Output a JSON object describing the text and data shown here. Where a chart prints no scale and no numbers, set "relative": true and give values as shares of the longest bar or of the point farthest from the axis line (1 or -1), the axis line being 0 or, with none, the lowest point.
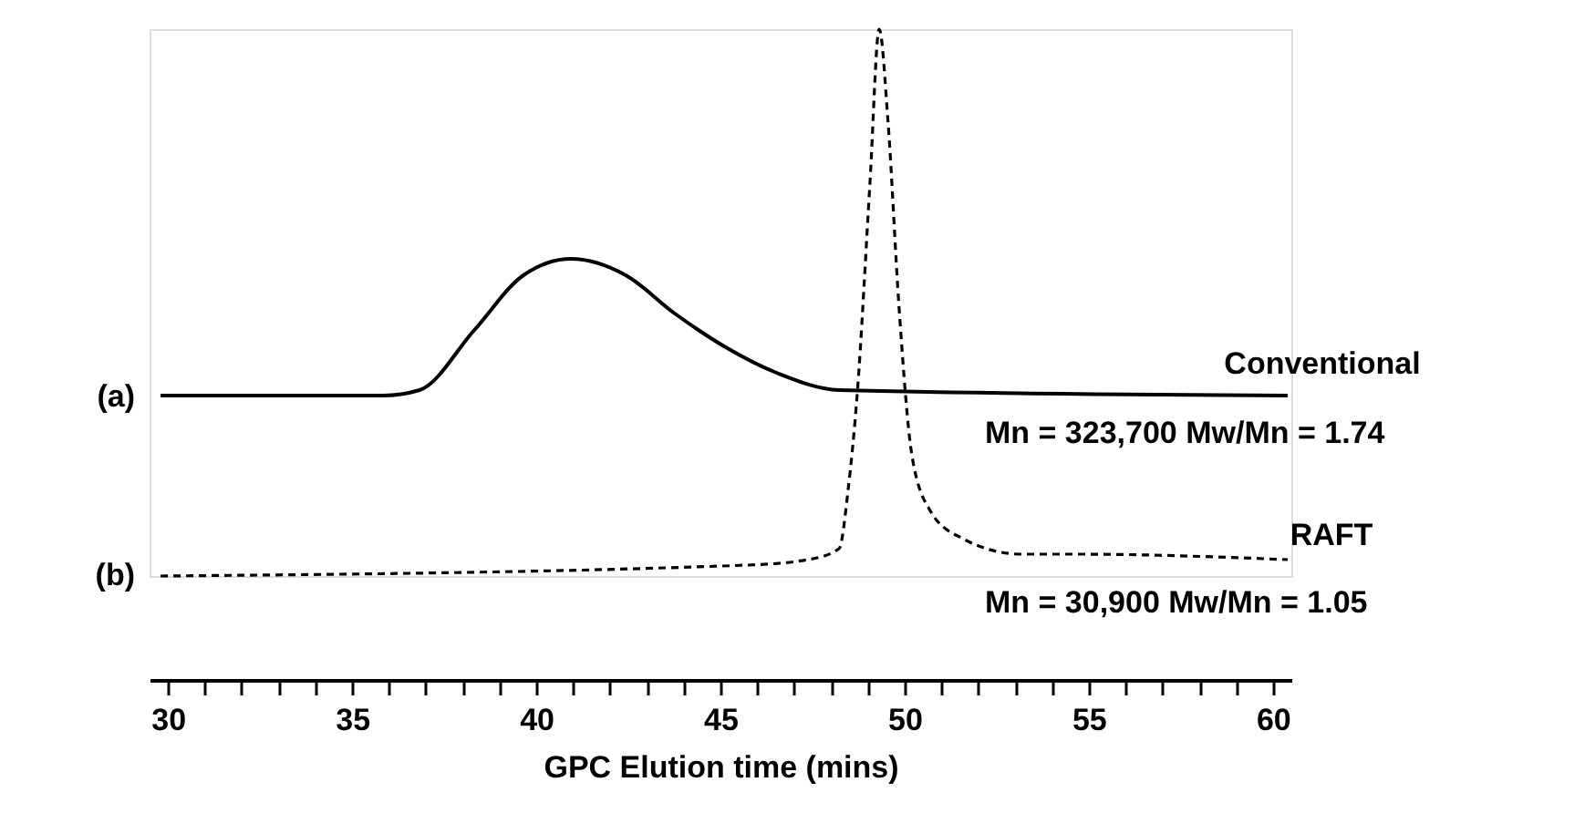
{
  "chart_data": {
    "type": "line",
    "relative": true,
    "xlabel": "GPC Elution time (mins)",
    "xlim": [
      29.5,
      60.5
    ],
    "xticks": [
      30,
      35,
      40,
      45,
      50,
      55,
      60
    ],
    "tick_labels": "x",
    "grid": false,
    "legend": false,
    "marker": "none",
    "series": [
      {
        "color": "#000000",
        "line_style": "solid",
        "x": [
          29.8,
          35.84,
          36.83,
          38.32,
          39.65,
          40.94,
          42.43,
          43.76,
          45.1,
          46.58,
          48.22,
          60.4
        ],
        "values": [
          0.33,
          0.33,
          0.34,
          0.45,
          0.55,
          0.58,
          0.55,
          0.48,
          0.42,
          0.37,
          0.34,
          0.33
        ]
      },
      {
        "color": "#000000",
        "line_style": "dashed",
        "x": [
          29.8,
          45.74,
          47.38,
          48.22,
          48.47,
          48.71,
          49.06,
          49.31,
          49.55,
          49.85,
          50.2,
          50.69,
          51.53,
          53.17,
          54.65,
          60.4
        ],
        "values": [
          0,
          0.02,
          0.03,
          0.05,
          0.16,
          0.33,
          0.72,
          1,
          0.83,
          0.49,
          0.22,
          0.12,
          0.07,
          0.04,
          0.04,
          0.03
        ]
      }
    ],
    "annotations": [
      "(a)",
      "(b)",
      "Conventional",
      "Mn = 323,700  Mw/Mn = 1.74",
      "RAFT",
      "Mn = 30,900  Mw/Mn = 1.05"
    ]
  }
}
